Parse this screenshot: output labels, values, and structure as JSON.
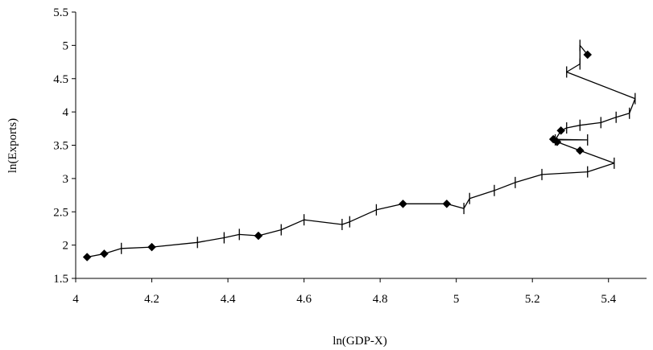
{
  "chart_data": {
    "type": "line",
    "title": "",
    "xlabel": "ln(GDP-X)",
    "ylabel": "ln(Exports)",
    "xlim": [
      4,
      5.5
    ],
    "ylim": [
      1.5,
      5.5
    ],
    "x_ticks": [
      "4",
      "4.2",
      "4.4",
      "4.6",
      "4.8",
      "5",
      "5.2",
      "5.4"
    ],
    "y_ticks": [
      "1.5",
      "2",
      "2.5",
      "3",
      "3.5",
      "4",
      "4.5",
      "5",
      "5.5"
    ],
    "grid": false,
    "legend": "none",
    "line_color": "#000000",
    "series": [
      {
        "points": [
          {
            "x": 4.03,
            "y": 1.82,
            "marker": "diamond"
          },
          {
            "x": 4.075,
            "y": 1.87,
            "marker": "diamond"
          },
          {
            "x": 4.12,
            "y": 1.95,
            "marker": "tick"
          },
          {
            "x": 4.2,
            "y": 1.97,
            "marker": "diamond"
          },
          {
            "x": 4.32,
            "y": 2.04,
            "marker": "tick"
          },
          {
            "x": 4.39,
            "y": 2.11,
            "marker": "tick"
          },
          {
            "x": 4.43,
            "y": 2.16,
            "marker": "tick"
          },
          {
            "x": 4.48,
            "y": 2.14,
            "marker": "diamond"
          },
          {
            "x": 4.54,
            "y": 2.23,
            "marker": "tick"
          },
          {
            "x": 4.6,
            "y": 2.38,
            "marker": "tick"
          },
          {
            "x": 4.7,
            "y": 2.31,
            "marker": "tick"
          },
          {
            "x": 4.72,
            "y": 2.35,
            "marker": "tick"
          },
          {
            "x": 4.79,
            "y": 2.53,
            "marker": "tick"
          },
          {
            "x": 4.86,
            "y": 2.62,
            "marker": "diamond"
          },
          {
            "x": 4.975,
            "y": 2.62,
            "marker": "diamond"
          },
          {
            "x": 5.02,
            "y": 2.55,
            "marker": "tick"
          },
          {
            "x": 5.035,
            "y": 2.7,
            "marker": "tick"
          },
          {
            "x": 5.1,
            "y": 2.82,
            "marker": "tick"
          },
          {
            "x": 5.155,
            "y": 2.94,
            "marker": "tick"
          },
          {
            "x": 5.225,
            "y": 3.06,
            "marker": "tick"
          },
          {
            "x": 5.345,
            "y": 3.1,
            "marker": "tick"
          },
          {
            "x": 5.415,
            "y": 3.23,
            "marker": "tick"
          },
          {
            "x": 5.325,
            "y": 3.42,
            "marker": "diamond"
          },
          {
            "x": 5.265,
            "y": 3.55,
            "marker": "diamond"
          },
          {
            "x": 5.255,
            "y": 3.59,
            "marker": "diamond"
          },
          {
            "x": 5.345,
            "y": 3.58,
            "marker": "tick"
          },
          {
            "x": 5.26,
            "y": 3.58,
            "marker": "tick"
          },
          {
            "x": 5.275,
            "y": 3.72,
            "marker": "diamond"
          },
          {
            "x": 5.29,
            "y": 3.76,
            "marker": "tick"
          },
          {
            "x": 5.325,
            "y": 3.8,
            "marker": "tick"
          },
          {
            "x": 5.38,
            "y": 3.84,
            "marker": "tick"
          },
          {
            "x": 5.42,
            "y": 3.92,
            "marker": "tick"
          },
          {
            "x": 5.455,
            "y": 3.98,
            "marker": "tick"
          },
          {
            "x": 5.47,
            "y": 4.2,
            "marker": "tick"
          },
          {
            "x": 5.29,
            "y": 4.6,
            "marker": "tick"
          },
          {
            "x": 5.325,
            "y": 4.72,
            "marker": "tick"
          },
          {
            "x": 5.325,
            "y": 5.0,
            "marker": "tick"
          },
          {
            "x": 5.345,
            "y": 4.86,
            "marker": "diamond"
          }
        ]
      }
    ]
  }
}
